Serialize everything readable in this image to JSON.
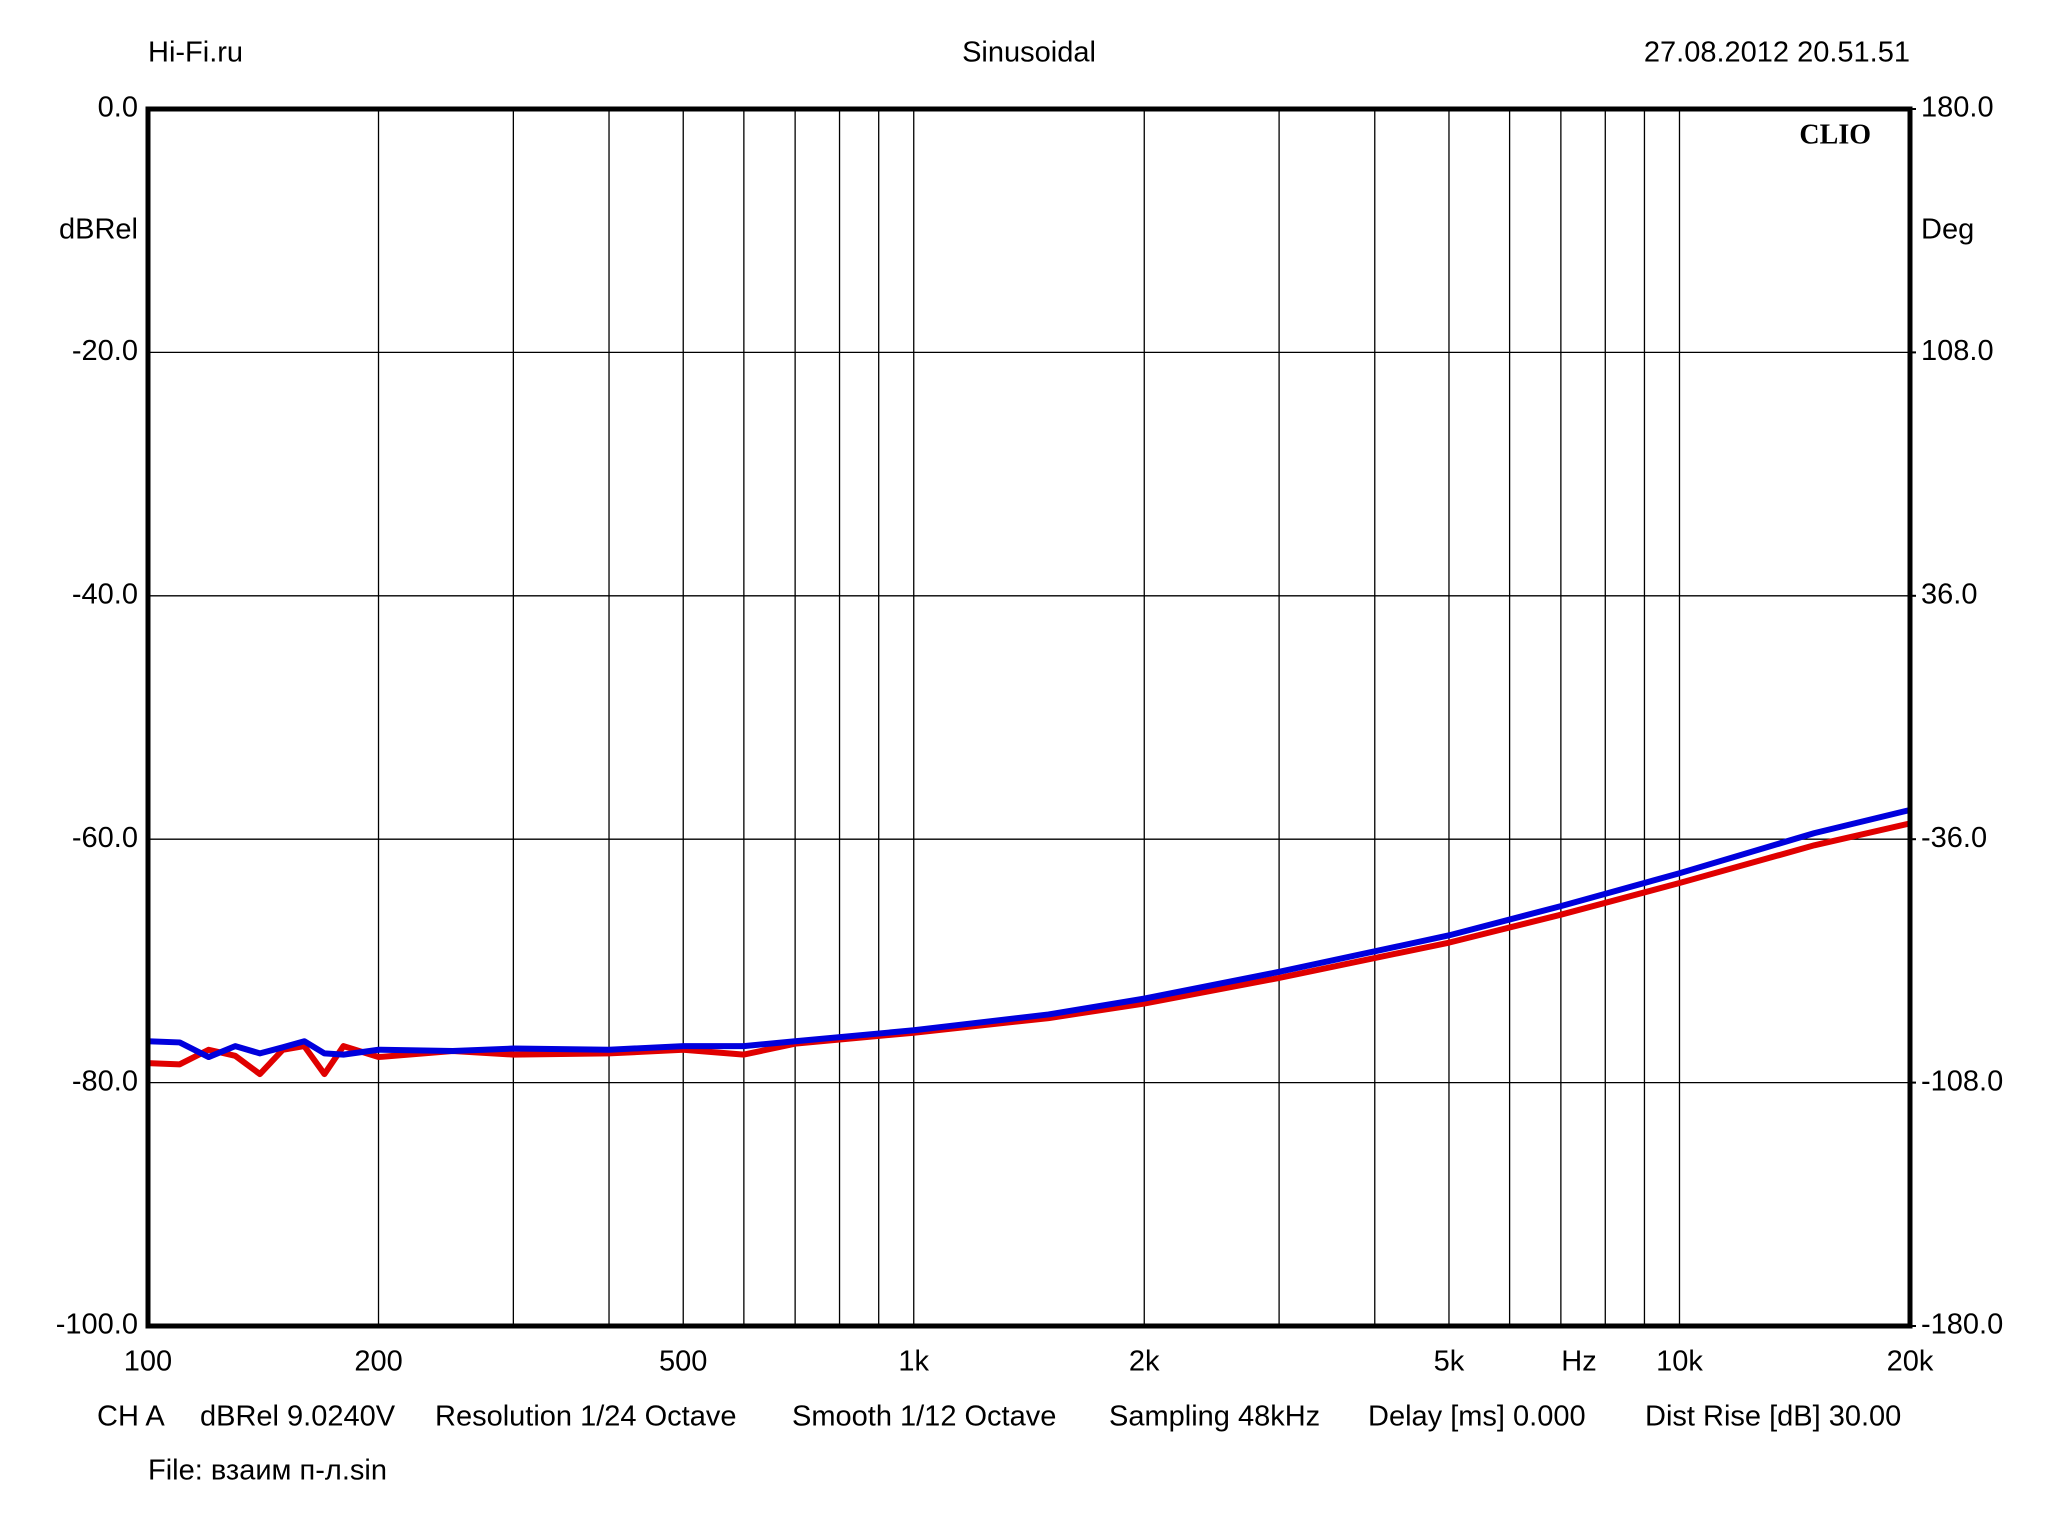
{
  "chart_data": {
    "type": "line",
    "header_left": "Hi-Fi.ru",
    "title": "Sinusoidal",
    "header_right": "27.08.2012 20.51.51",
    "watermark": "CLIO",
    "ylabel": "dBRel",
    "y2label": "Deg",
    "xlabel": "Hz",
    "log_x": true,
    "grid": true,
    "xlim": [
      100,
      20000
    ],
    "xticks": [
      100,
      200,
      500,
      {
        "value": 1000,
        "label": "1k"
      },
      {
        "value": 2000,
        "label": "2k"
      },
      {
        "value": 5000,
        "label": "5k"
      },
      {
        "value": 10000,
        "label": "10k"
      },
      {
        "value": 20000,
        "label": "20k"
      }
    ],
    "xgrid_minor": [
      300,
      400,
      600,
      700,
      800,
      900,
      3000,
      4000,
      6000,
      7000,
      8000,
      9000
    ],
    "ylim": [
      -100,
      0
    ],
    "yticks": [
      {
        "value": 0,
        "label": "0.0"
      },
      {
        "value": -20,
        "label": "-20.0"
      },
      {
        "value": -40,
        "label": "-40.0"
      },
      {
        "value": -60,
        "label": "-60.0"
      },
      {
        "value": -80,
        "label": "-80.0"
      },
      {
        "value": -100,
        "label": "-100.0"
      }
    ],
    "y2lim": [
      -180,
      180
    ],
    "y2ticks": [
      {
        "value": 180,
        "label": "180.0"
      },
      {
        "value": 108,
        "label": "108.0"
      },
      {
        "value": 36,
        "label": "36.0"
      },
      {
        "value": -36,
        "label": "-36.0"
      },
      {
        "value": -108,
        "label": "-108.0"
      },
      {
        "value": -180,
        "label": "-180.0"
      }
    ],
    "x": [
      100,
      110,
      120,
      130,
      140,
      150,
      160,
      170,
      180,
      200,
      250,
      300,
      400,
      500,
      600,
      700,
      1000,
      1500,
      2000,
      3000,
      5000,
      7000,
      10000,
      15000,
      20000
    ],
    "series": [
      {
        "color": "#e00000",
        "values": [
          -78.4,
          -78.5,
          -77.3,
          -77.8,
          -79.3,
          -77.3,
          -77.0,
          -79.3,
          -77.0,
          -77.9,
          -77.4,
          -77.7,
          -77.6,
          -77.3,
          -77.7,
          -76.8,
          -75.9,
          -74.7,
          -73.5,
          -71.4,
          -68.5,
          -66.2,
          -63.6,
          -60.5,
          -58.7
        ]
      },
      {
        "color": "#0000dd",
        "values": [
          -76.6,
          -76.7,
          -77.9,
          -77.0,
          -77.6,
          -77.1,
          -76.6,
          -77.6,
          -77.7,
          -77.3,
          -77.4,
          -77.2,
          -77.3,
          -77.0,
          -77.0,
          -76.6,
          -75.7,
          -74.4,
          -73.1,
          -70.9,
          -67.9,
          -65.5,
          -62.8,
          -59.5,
          -57.6
        ]
      }
    ],
    "footer": [
      "CH A",
      "dBRel 9.0240V",
      "Resolution 1/24 Octave",
      "Smooth 1/12 Octave",
      "Sampling 48kHz",
      "Delay [ms] 0.000",
      "Dist Rise [dB] 30.00"
    ],
    "file": "File: взаим п-л.sin"
  }
}
